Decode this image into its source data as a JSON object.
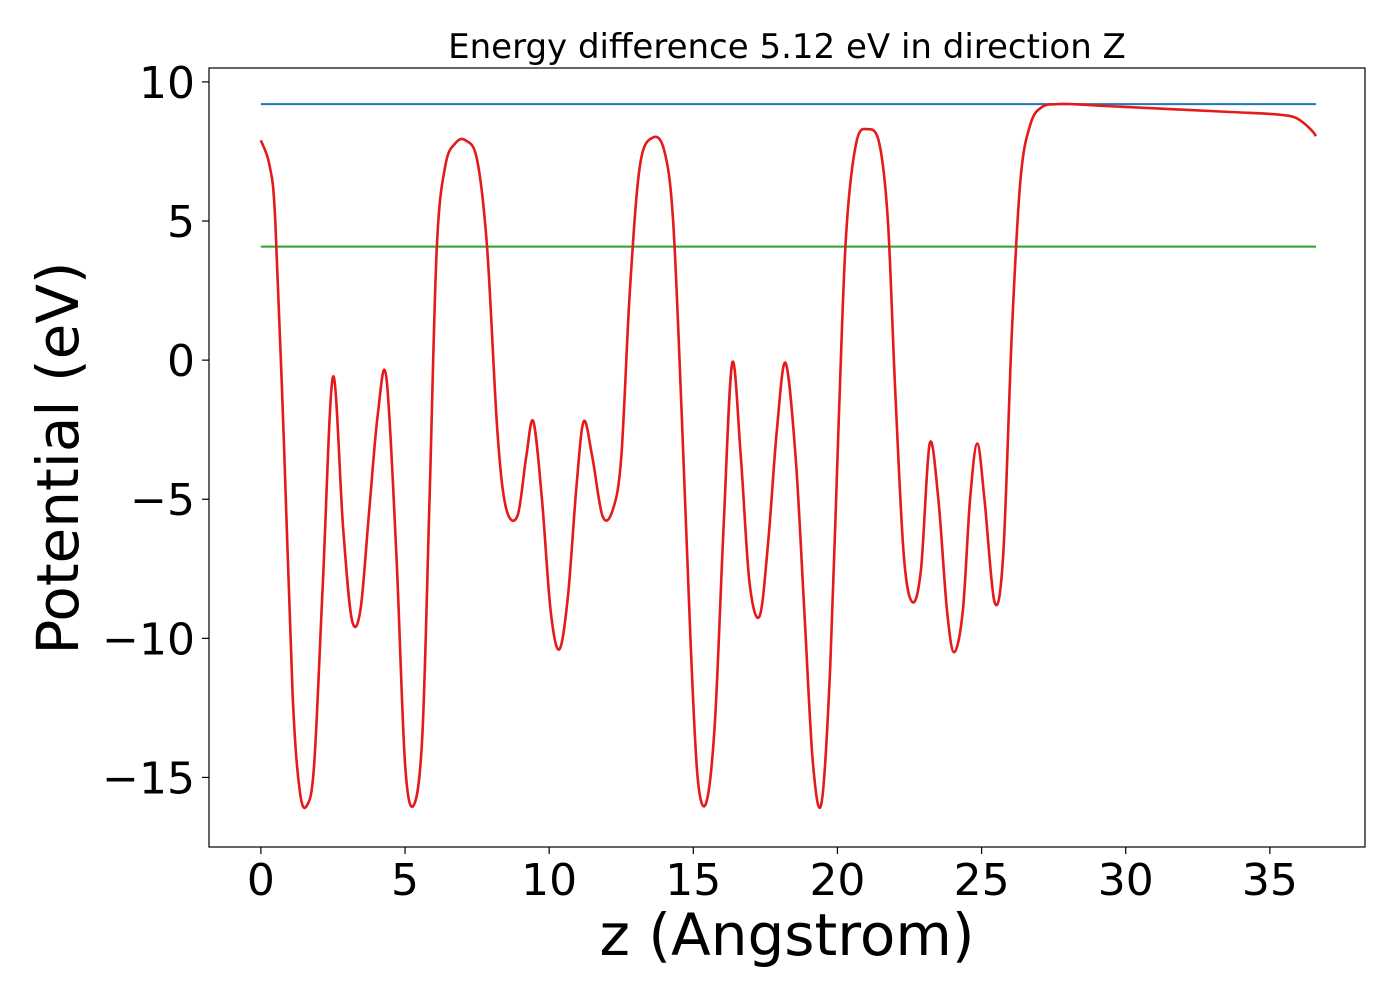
{
  "chart_data": {
    "type": "line",
    "title": "Energy difference 5.12 eV in direction Z",
    "xlabel": "z (Angstrom)",
    "ylabel": "Potential (eV)",
    "xlim": [
      -1.8,
      38.3
    ],
    "ylim": [
      -17.5,
      10.5
    ],
    "xticks": [
      0,
      5,
      10,
      15,
      20,
      25,
      30,
      35
    ],
    "yticks": [
      10,
      5,
      0,
      -5,
      -10,
      -15
    ],
    "xtick_labels": [
      "0",
      "5",
      "10",
      "15",
      "20",
      "25",
      "30",
      "35"
    ],
    "ytick_labels": [
      "10",
      "5",
      "0",
      "−5",
      "−10",
      "−15"
    ],
    "grid": false,
    "colors": {
      "potential": "#e41a1c",
      "vacuum_level": "#1f77b4",
      "fermi_level": "#2ca02c"
    },
    "series": [
      {
        "key": "potential",
        "x": [
          0.0,
          0.3,
          0.5,
          0.8,
          1.1,
          1.35,
          1.6,
          1.85,
          2.15,
          2.5,
          2.85,
          3.15,
          3.45,
          3.75,
          4.05,
          4.35,
          4.7,
          5.0,
          5.3,
          5.6,
          5.85,
          6.1,
          6.4,
          6.75,
          7.1,
          7.5,
          7.85,
          8.2,
          8.5,
          8.9,
          9.2,
          9.45,
          9.75,
          10.05,
          10.35,
          10.65,
          10.95,
          11.2,
          11.5,
          11.85,
          12.2,
          12.5,
          12.8,
          13.15,
          13.6,
          14.0,
          14.3,
          14.6,
          14.9,
          15.15,
          15.45,
          15.75,
          16.05,
          16.35,
          16.65,
          16.95,
          17.3,
          17.6,
          17.9,
          18.2,
          18.55,
          18.85,
          19.15,
          19.45,
          19.75,
          20.05,
          20.3,
          20.65,
          21.05,
          21.45,
          21.75,
          22.0,
          22.3,
          22.6,
          22.9,
          23.2,
          23.5,
          23.8,
          24.05,
          24.35,
          24.6,
          24.85,
          25.1,
          25.45,
          25.75,
          26.05,
          26.35,
          26.7,
          27.1,
          27.6,
          28.2,
          29.0,
          30.0,
          31.0,
          32.0,
          33.0,
          34.0,
          35.0,
          35.8,
          36.2,
          36.5,
          36.6
        ],
        "y": [
          7.9,
          7.0,
          5.0,
          -3.0,
          -12.0,
          -15.5,
          -16.0,
          -14.5,
          -8.0,
          -0.6,
          -6.0,
          -9.3,
          -9.0,
          -5.5,
          -2.0,
          -0.6,
          -7.0,
          -14.5,
          -16.0,
          -13.5,
          -5.0,
          4.0,
          7.0,
          7.8,
          7.9,
          7.2,
          4.0,
          -2.5,
          -5.3,
          -5.6,
          -3.5,
          -2.2,
          -5.0,
          -9.0,
          -10.4,
          -8.5,
          -4.5,
          -2.2,
          -3.5,
          -5.6,
          -5.4,
          -3.5,
          2.5,
          7.0,
          8.0,
          7.5,
          5.0,
          -2.0,
          -10.0,
          -15.0,
          -15.9,
          -13.0,
          -6.0,
          -0.1,
          -3.5,
          -8.0,
          -9.2,
          -6.5,
          -2.5,
          -0.1,
          -3.5,
          -9.0,
          -14.5,
          -15.9,
          -11.0,
          -2.0,
          4.5,
          7.8,
          8.3,
          7.8,
          5.0,
          -1.0,
          -7.0,
          -8.7,
          -7.5,
          -3.0,
          -5.0,
          -9.0,
          -10.5,
          -9.0,
          -5.0,
          -3.0,
          -5.0,
          -8.7,
          -7.0,
          1.0,
          6.5,
          8.5,
          9.1,
          9.2,
          9.2,
          9.15,
          9.1,
          9.05,
          9.0,
          8.95,
          8.9,
          8.85,
          8.75,
          8.5,
          8.2,
          8.05
        ]
      },
      {
        "key": "vacuum_level",
        "x": [
          0.0,
          36.6
        ],
        "y": [
          9.2,
          9.2
        ]
      },
      {
        "key": "fermi_level",
        "x": [
          0.0,
          36.6
        ],
        "y": [
          4.08,
          4.08
        ]
      }
    ]
  }
}
